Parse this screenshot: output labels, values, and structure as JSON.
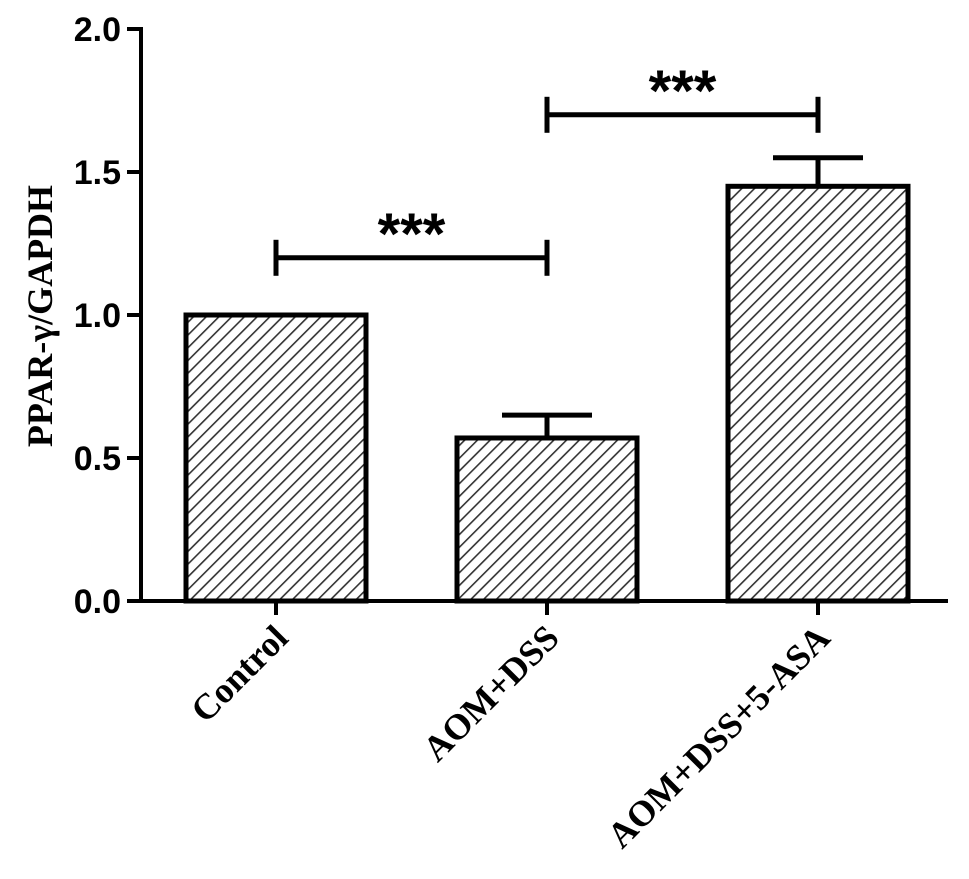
{
  "chart_data": {
    "type": "bar",
    "title": "",
    "xlabel": "",
    "ylabel": "PPAR-γ/GAPDH",
    "ylim": [
      0,
      2.0
    ],
    "yticks": [
      "0.0",
      "0.5",
      "1.0",
      "1.5",
      "2.0"
    ],
    "ytick_values": [
      0,
      0.5,
      1.0,
      1.5,
      2.0
    ],
    "categories": [
      "Control",
      "AOM+DSS",
      "AOM+DSS+5-ASA"
    ],
    "values": [
      1.0,
      0.57,
      1.45
    ],
    "errors": [
      0.0,
      0.08,
      0.1
    ],
    "grid": false,
    "legend": "none",
    "bar_fill": "hatched",
    "colors": {
      "bar_edge": "#000000",
      "hatch": "#333333",
      "background": "#ffffff"
    },
    "significance": [
      {
        "from": 0,
        "to": 1,
        "label": "***",
        "y": 1.2
      },
      {
        "from": 1,
        "to": 2,
        "label": "***",
        "y": 1.7
      }
    ]
  }
}
